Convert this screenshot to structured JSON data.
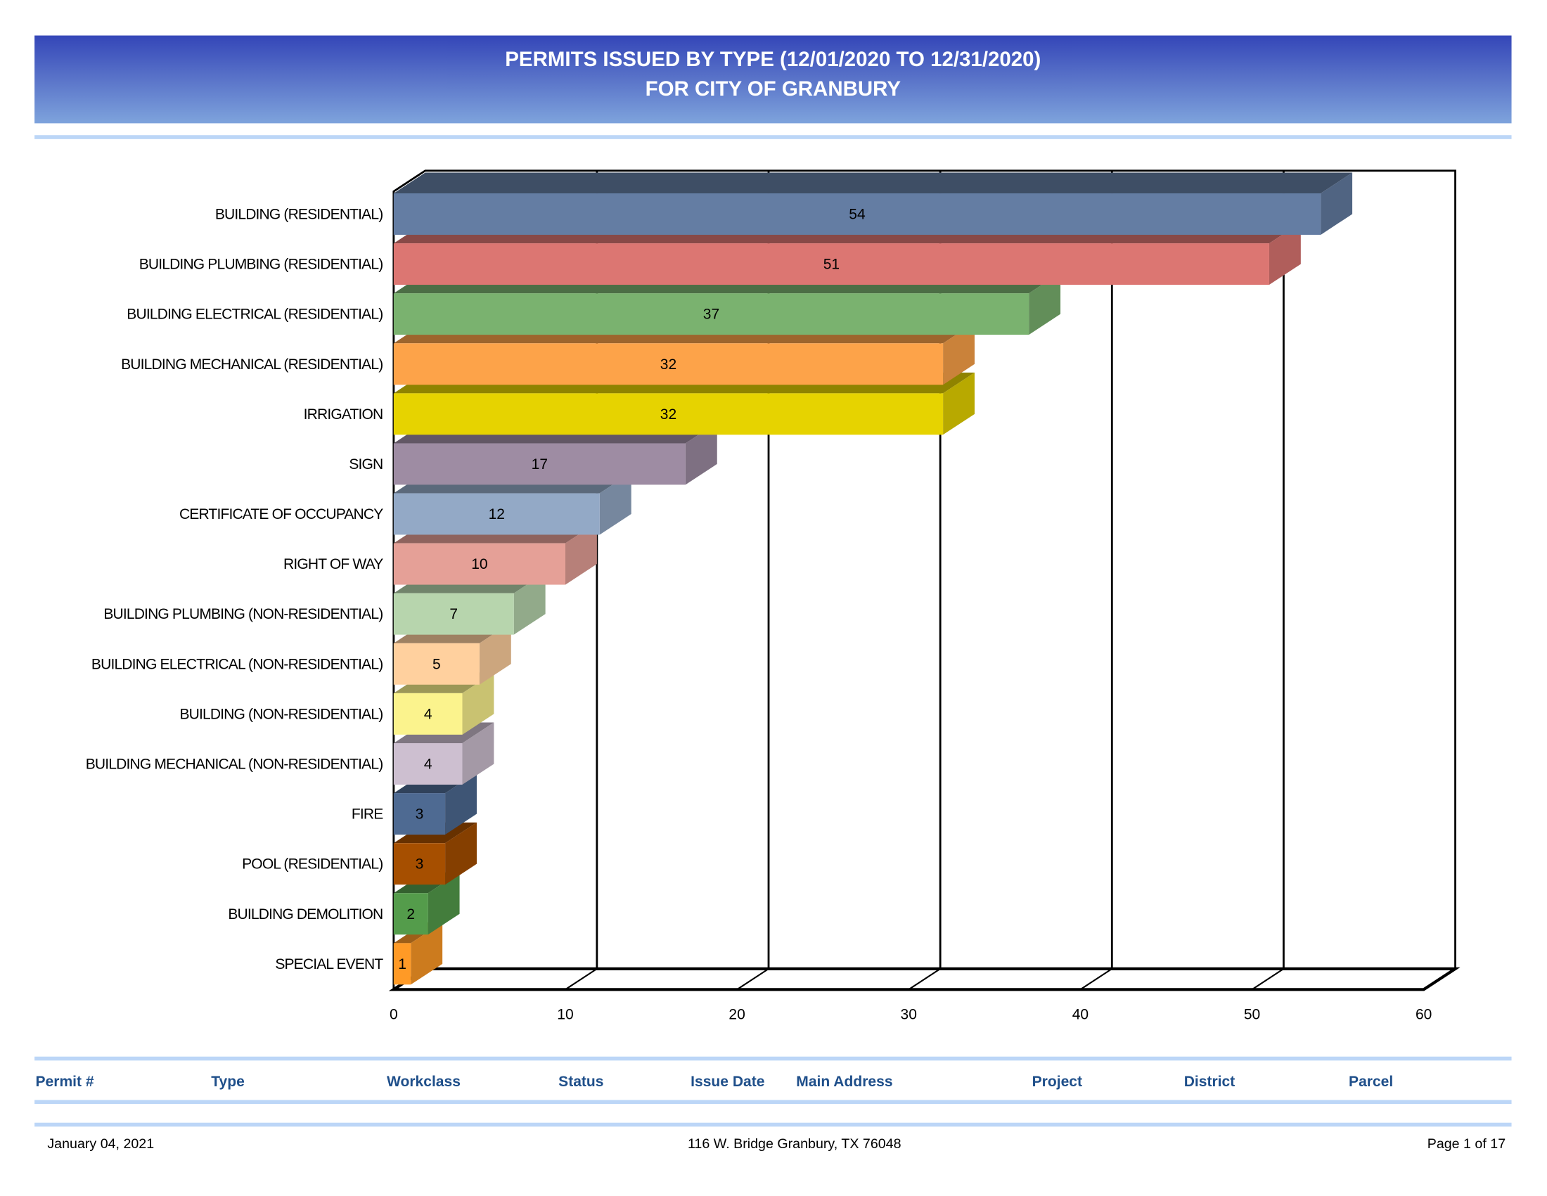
{
  "header": {
    "title_line1": "PERMITS ISSUED BY TYPE (12/01/2020 TO 12/31/2020)",
    "title_line2": "FOR CITY OF GRANBURY",
    "gradient_top": "#3446b8",
    "gradient_bottom": "#7ea3dc"
  },
  "chart_data": {
    "type": "bar",
    "orientation": "horizontal",
    "style": "3d",
    "categories": [
      "BUILDING (RESIDENTIAL)",
      "BUILDING PLUMBING (RESIDENTIAL)",
      "BUILDING ELECTRICAL (RESIDENTIAL)",
      "BUILDING MECHANICAL (RESIDENTIAL)",
      "IRRIGATION",
      "SIGN",
      "CERTIFICATE OF OCCUPANCY",
      "RIGHT OF WAY",
      "BUILDING PLUMBING (NON-RESIDENTIAL)",
      "BUILDING ELECTRICAL (NON-RESIDENTIAL)",
      "BUILDING (NON-RESIDENTIAL)",
      "BUILDING MECHANICAL (NON-RESIDENTIAL)",
      "FIRE",
      "POOL (RESIDENTIAL)",
      "BUILDING DEMOLITION",
      "SPECIAL EVENT"
    ],
    "values": [
      54,
      51,
      37,
      32,
      32,
      17,
      12,
      10,
      7,
      5,
      4,
      4,
      3,
      3,
      2,
      1
    ],
    "colors": [
      "#647da3",
      "#dc7672",
      "#7ab26f",
      "#fda349",
      "#e6d300",
      "#9e8ca3",
      "#93a9c6",
      "#e5a097",
      "#b7d5ad",
      "#ffd09e",
      "#fbf38d",
      "#cdbfd0",
      "#4e6a92",
      "#a64f00",
      "#549c4b",
      "#ff9a26"
    ],
    "xlim": [
      0,
      60
    ],
    "xticks": [
      "0",
      "10",
      "20",
      "30",
      "40",
      "50",
      "60"
    ],
    "grid": true,
    "data_labels": true
  },
  "table": {
    "columns": [
      "Permit #",
      "Type",
      "Workclass",
      "Status",
      "Issue Date",
      "Main Address",
      "Project",
      "District",
      "Parcel"
    ]
  },
  "footer": {
    "date": "January 04, 2021",
    "address": "116 W. Bridge Granbury, TX 76048",
    "page": "Page 1 of 17"
  }
}
